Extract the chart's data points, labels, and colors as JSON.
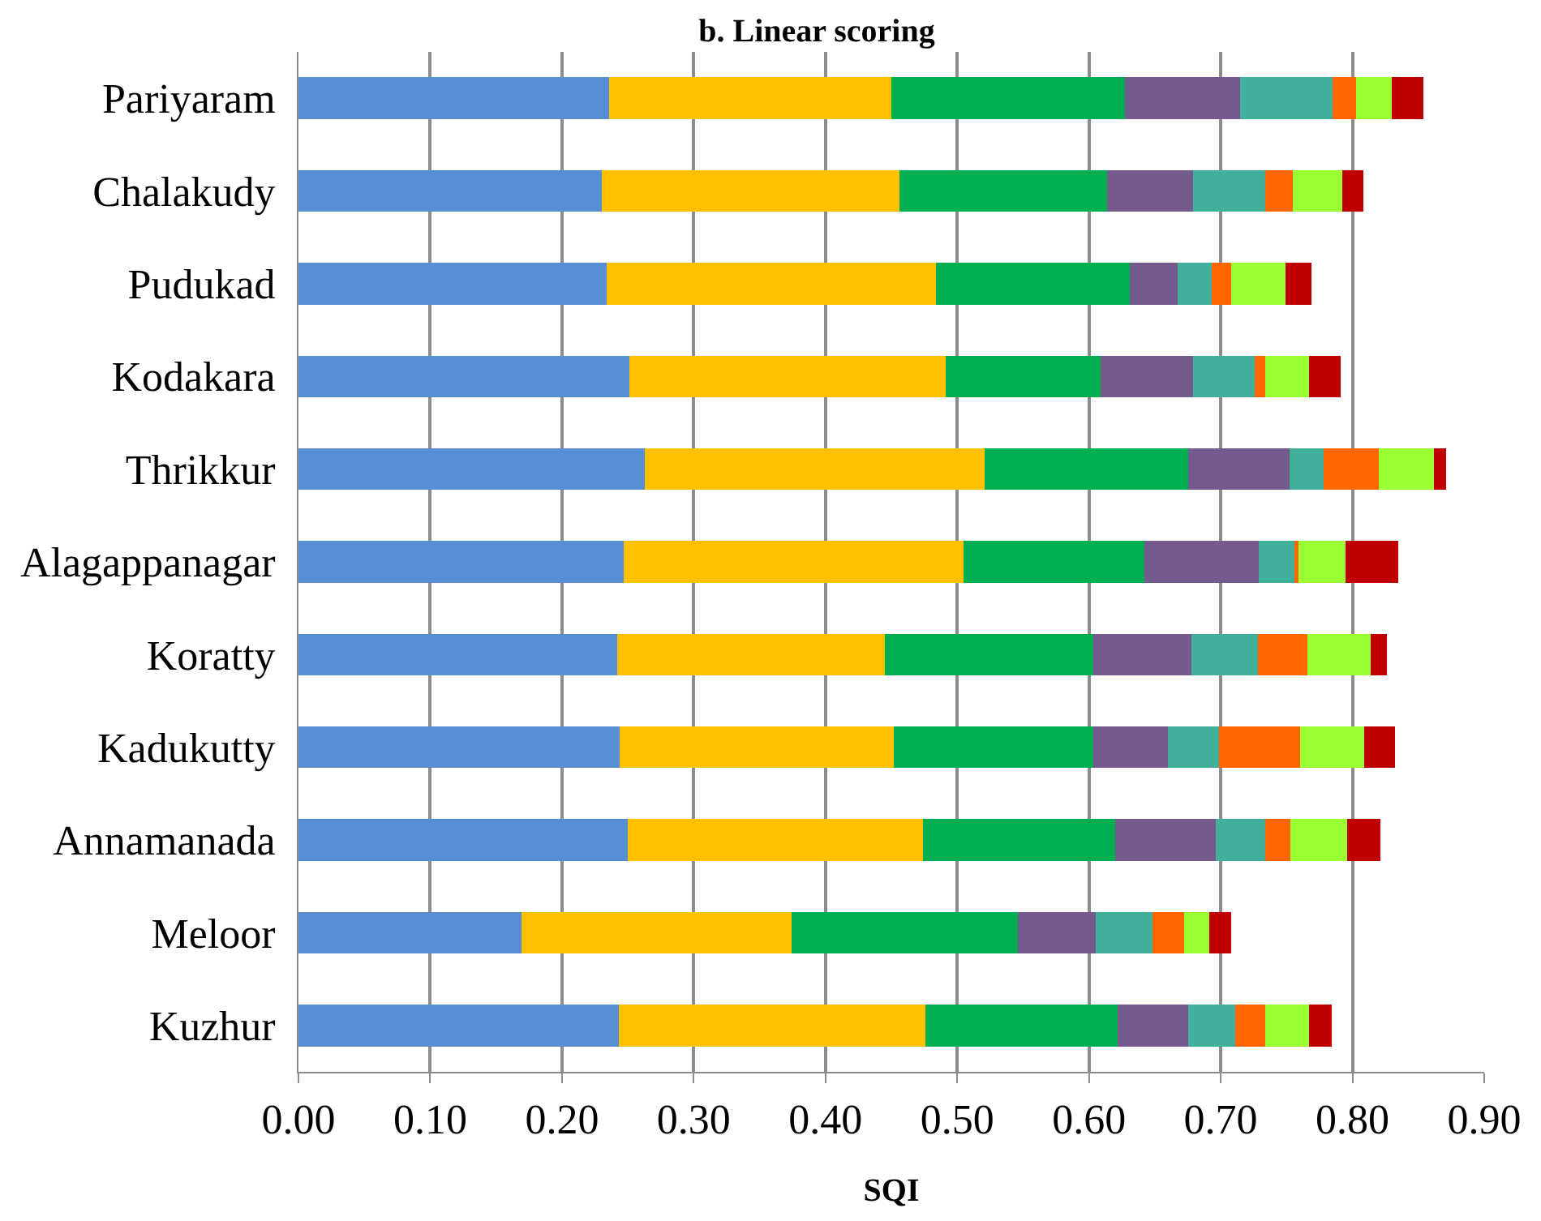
{
  "chart_data": {
    "type": "bar",
    "orientation": "horizontal",
    "stacked": true,
    "title": "b. Linear scoring",
    "xlabel": "SQI",
    "categories": [
      "Pariyaram",
      "Chalakudy",
      "Pudukad",
      "Kodakara",
      "Thrikkur",
      "Alagappanagar",
      "Koratty",
      "Kadukutty",
      "Annamanada",
      "Meloor",
      "Kuzhur"
    ],
    "series": [
      {
        "color": "#558ed5",
        "values": [
          0.236,
          0.23,
          0.234,
          0.251,
          0.263,
          0.247,
          0.242,
          0.244,
          0.25,
          0.169,
          0.243
        ]
      },
      {
        "color": "#ffc000",
        "values": [
          0.214,
          0.226,
          0.25,
          0.24,
          0.258,
          0.258,
          0.203,
          0.208,
          0.224,
          0.205,
          0.233
        ]
      },
      {
        "color": "#00b050",
        "values": [
          0.177,
          0.158,
          0.147,
          0.118,
          0.154,
          0.137,
          0.158,
          0.151,
          0.146,
          0.172,
          0.146
        ]
      },
      {
        "color": "#755a8e",
        "values": [
          0.088,
          0.065,
          0.036,
          0.07,
          0.077,
          0.087,
          0.075,
          0.057,
          0.076,
          0.059,
          0.053
        ]
      },
      {
        "color": "#40b09a",
        "values": [
          0.07,
          0.055,
          0.026,
          0.047,
          0.026,
          0.028,
          0.05,
          0.039,
          0.038,
          0.043,
          0.036
        ]
      },
      {
        "color": "#ff6600",
        "values": [
          0.018,
          0.021,
          0.015,
          0.008,
          0.042,
          0.002,
          0.038,
          0.061,
          0.019,
          0.024,
          0.023
        ]
      },
      {
        "color": "#99ff33",
        "values": [
          0.027,
          0.037,
          0.041,
          0.033,
          0.042,
          0.036,
          0.048,
          0.049,
          0.043,
          0.019,
          0.033
        ]
      },
      {
        "color": "#c00000",
        "values": [
          0.024,
          0.016,
          0.02,
          0.024,
          0.009,
          0.04,
          0.012,
          0.023,
          0.025,
          0.017,
          0.017
        ]
      }
    ],
    "xlim": [
      0,
      0.9
    ],
    "xticks": [
      {
        "value": 0,
        "label": "0.00"
      },
      {
        "value": 0.1,
        "label": "0.10"
      },
      {
        "value": 0.2,
        "label": "0.20"
      },
      {
        "value": 0.3,
        "label": "0.30"
      },
      {
        "value": 0.4,
        "label": "0.40"
      },
      {
        "value": 0.5,
        "label": "0.50"
      },
      {
        "value": 0.6,
        "label": "0.60"
      },
      {
        "value": 0.7,
        "label": "0.70"
      },
      {
        "value": 0.8,
        "label": "0.80"
      },
      {
        "value": 0.9,
        "label": "0.90"
      }
    ],
    "grid": "x"
  }
}
